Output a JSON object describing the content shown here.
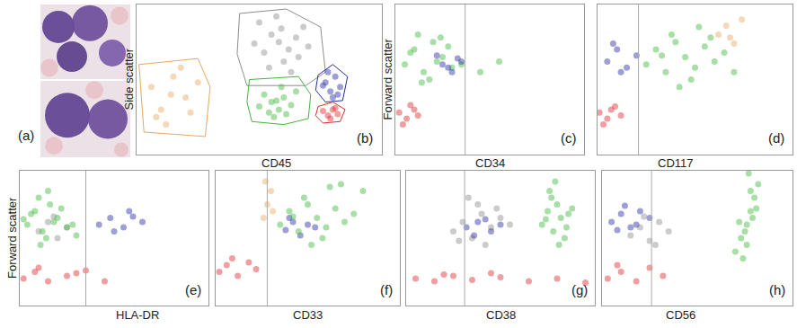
{
  "images": {
    "label": "(a)"
  },
  "chart_data": [
    {
      "type": "scatter",
      "panel_label": "(b)",
      "x_label": "CD45",
      "y_label": "Side scatter",
      "xlim": [
        0,
        100
      ],
      "ylim": [
        0,
        100
      ],
      "xticks": [],
      "yticks": [],
      "tick_labels": false,
      "series": [
        {
          "color": "#8c8c8c",
          "x": [
            50,
            55,
            58,
            62,
            65,
            60,
            52,
            68,
            57,
            63,
            48,
            70,
            59,
            54,
            66
          ],
          "y": [
            88,
            80,
            75,
            70,
            78,
            62,
            68,
            85,
            92,
            55,
            74,
            72,
            84,
            58,
            65
          ],
          "gate": [
            [
              42,
              94
            ],
            [
              61,
              97
            ],
            [
              75,
              85
            ],
            [
              77,
              55
            ],
            [
              69,
              46
            ],
            [
              45,
              46
            ],
            [
              41,
              67
            ]
          ]
        },
        {
          "color": "#3cb83c",
          "x": [
            52,
            55,
            58,
            60,
            63,
            56,
            50,
            65,
            59,
            54,
            61,
            57
          ],
          "y": [
            40,
            35,
            30,
            38,
            33,
            25,
            32,
            42,
            45,
            28,
            27,
            36
          ],
          "gate": [
            [
              46,
              50
            ],
            [
              66,
              52
            ],
            [
              71,
              40
            ],
            [
              70,
              24
            ],
            [
              60,
              20
            ],
            [
              47,
              22
            ],
            [
              45,
              35
            ]
          ]
        },
        {
          "color": "#2a2aa8",
          "x": [
            77,
            79,
            81,
            83,
            80,
            78,
            82,
            76
          ],
          "y": [
            48,
            42,
            52,
            45,
            38,
            55,
            40,
            46
          ],
          "gate": [
            [
              74,
              53
            ],
            [
              80,
              60
            ],
            [
              86,
              52
            ],
            [
              84,
              36
            ],
            [
              77,
              35
            ],
            [
              73,
              43
            ]
          ]
        },
        {
          "color": "#e0282c",
          "x": [
            76,
            78,
            80,
            82,
            79,
            81
          ],
          "y": [
            29,
            26,
            30,
            27,
            24,
            31
          ],
          "gate": [
            [
              74,
              32
            ],
            [
              80,
              35
            ],
            [
              85,
              30
            ],
            [
              83,
              22
            ],
            [
              76,
              21
            ],
            [
              73,
              26
            ]
          ]
        },
        {
          "color": "#e8a860",
          "x": [
            6,
            10,
            15,
            20,
            12,
            25,
            8,
            18,
            22,
            14
          ],
          "y": [
            45,
            30,
            52,
            38,
            20,
            48,
            25,
            58,
            28,
            40
          ],
          "gate": [
            [
              1,
              60
            ],
            [
              25,
              64
            ],
            [
              30,
              45
            ],
            [
              28,
              12
            ],
            [
              3,
              15
            ]
          ]
        }
      ]
    },
    {
      "type": "scatter",
      "panel_label": "(c)",
      "x_label": "CD34",
      "y_label": "Forward scatter",
      "xlim": [
        0,
        100
      ],
      "ylim": [
        0,
        100
      ],
      "xticks": [],
      "yticks": [],
      "tick_labels": false,
      "threshold": 37,
      "series": [
        {
          "color": "#3cb83c",
          "x": [
            5,
            10,
            15,
            20,
            25,
            30,
            12,
            18,
            8,
            22,
            28,
            35,
            45,
            55,
            14,
            24
          ],
          "y": [
            60,
            70,
            55,
            75,
            65,
            58,
            80,
            50,
            68,
            62,
            72,
            60,
            55,
            62,
            48,
            78
          ]
        },
        {
          "color": "#2a2aa8",
          "x": [
            25,
            30,
            33,
            28,
            35,
            22
          ],
          "y": [
            60,
            55,
            64,
            58,
            62,
            66
          ]
        },
        {
          "color": "#e0282c",
          "x": [
            2,
            6,
            10,
            4,
            8,
            12
          ],
          "y": [
            28,
            24,
            30,
            20,
            33,
            26
          ]
        }
      ]
    },
    {
      "type": "scatter",
      "panel_label": "(d)",
      "x_label": "CD117",
      "xlim": [
        0,
        100
      ],
      "ylim": [
        0,
        100
      ],
      "xticks": [],
      "yticks": [],
      "tick_labels": false,
      "threshold": 21,
      "series": [
        {
          "color": "#2a2aa8",
          "x": [
            5,
            10,
            15,
            20,
            8,
            12
          ],
          "y": [
            62,
            70,
            58,
            66,
            74,
            55
          ]
        },
        {
          "color": "#3cb83c",
          "x": [
            25,
            30,
            35,
            40,
            45,
            50,
            55,
            60,
            65,
            70,
            38,
            48,
            58,
            42,
            52,
            33
          ],
          "y": [
            60,
            70,
            55,
            75,
            65,
            58,
            72,
            62,
            68,
            55,
            80,
            50,
            78,
            45,
            85,
            66
          ]
        },
        {
          "color": "#e8a860",
          "x": [
            62,
            66,
            70,
            74,
            68
          ],
          "y": [
            80,
            86,
            74,
            90,
            78
          ]
        },
        {
          "color": "#e0282c",
          "x": [
            1,
            5,
            9,
            3,
            7,
            12
          ],
          "y": [
            28,
            24,
            32,
            20,
            30,
            26
          ]
        }
      ]
    },
    {
      "type": "scatter",
      "panel_label": "(e)",
      "x_label": "HLA-DR",
      "y_label": "Forward scatter",
      "xlim": [
        0,
        100
      ],
      "ylim": [
        0,
        100
      ],
      "xticks": [],
      "yticks": [],
      "tick_labels": false,
      "threshold": 35,
      "series": [
        {
          "color": "#8c8c8c",
          "x": [
            10,
            15,
            20,
            25,
            18
          ],
          "y": [
            55,
            62,
            50,
            58,
            66
          ]
        },
        {
          "color": "#3cb83c",
          "x": [
            4,
            8,
            12,
            16,
            20,
            25,
            10,
            14,
            6,
            18,
            22,
            28,
            30,
            2,
            15,
            11
          ],
          "y": [
            60,
            70,
            55,
            75,
            65,
            58,
            80,
            50,
            68,
            62,
            72,
            60,
            52,
            64,
            85,
            45
          ]
        },
        {
          "color": "#2a2aa8",
          "x": [
            42,
            48,
            55,
            60,
            65,
            50,
            58
          ],
          "y": [
            60,
            65,
            58,
            66,
            62,
            55,
            70
          ]
        },
        {
          "color": "#e0282c",
          "x": [
            2,
            8,
            15,
            25,
            35,
            45,
            10,
            30
          ],
          "y": [
            20,
            25,
            18,
            22,
            26,
            18,
            28,
            24
          ]
        }
      ]
    },
    {
      "type": "scatter",
      "panel_label": "(f)",
      "x_label": "CD33",
      "xlim": [
        0,
        100
      ],
      "ylim": [
        0,
        100
      ],
      "xticks": [],
      "yticks": [],
      "tick_labels": false,
      "threshold": 28,
      "series": [
        {
          "color": "#e8a860",
          "x": [
            26,
            28,
            30,
            27,
            31
          ],
          "y": [
            65,
            75,
            85,
            92,
            70
          ]
        },
        {
          "color": "#2a2aa8",
          "x": [
            38,
            42,
            46,
            50,
            40,
            54
          ],
          "y": [
            56,
            62,
            52,
            60,
            65,
            58
          ]
        },
        {
          "color": "#3cb83c",
          "x": [
            35,
            40,
            45,
            50,
            55,
            60,
            65,
            70,
            75,
            80,
            48,
            58,
            68,
            52,
            62,
            42
          ],
          "y": [
            60,
            70,
            55,
            75,
            65,
            58,
            72,
            62,
            68,
            85,
            80,
            50,
            90,
            45,
            88,
            66
          ]
        },
        {
          "color": "#e0282c",
          "x": [
            2,
            6,
            12,
            18,
            22,
            9
          ],
          "y": [
            25,
            30,
            22,
            32,
            27,
            35
          ]
        }
      ]
    },
    {
      "type": "scatter",
      "panel_label": "(g)",
      "x_label": "CD38",
      "xlim": [
        0,
        100
      ],
      "ylim": [
        0,
        100
      ],
      "xticks": [],
      "yticks": [],
      "tick_labels": false,
      "threshold": 31,
      "series": [
        {
          "color": "#8c8c8c",
          "x": [
            25,
            30,
            35,
            40,
            45,
            50,
            55,
            38,
            42,
            33,
            48,
            28
          ],
          "y": [
            55,
            62,
            50,
            68,
            58,
            65,
            60,
            75,
            45,
            80,
            72,
            48
          ]
        },
        {
          "color": "#2a2aa8",
          "x": [
            32,
            38,
            45,
            50,
            42,
            36
          ],
          "y": [
            58,
            62,
            55,
            60,
            64,
            52
          ]
        },
        {
          "color": "#3cb83c",
          "x": [
            72,
            75,
            78,
            80,
            82,
            85,
            88,
            76,
            84,
            79,
            81,
            74,
            86,
            77
          ],
          "y": [
            60,
            70,
            55,
            75,
            65,
            58,
            72,
            85,
            50,
            92,
            45,
            64,
            68,
            80
          ]
        },
        {
          "color": "#e0282c",
          "x": [
            5,
            15,
            25,
            35,
            50,
            65,
            80,
            95,
            45,
            20
          ],
          "y": [
            20,
            18,
            22,
            19,
            21,
            18,
            20,
            17,
            24,
            23
          ]
        }
      ]
    },
    {
      "type": "scatter",
      "panel_label": "(h)",
      "x_label": "CD56",
      "xlim": [
        0,
        100
      ],
      "ylim": [
        0,
        100
      ],
      "xticks": [],
      "yticks": [],
      "tick_labels": false,
      "threshold": 26,
      "series": [
        {
          "color": "#8c8c8c",
          "x": [
            15,
            20,
            25,
            30,
            35,
            22,
            28
          ],
          "y": [
            52,
            58,
            48,
            62,
            55,
            66,
            45
          ]
        },
        {
          "color": "#2a2aa8",
          "x": [
            5,
            10,
            15,
            20,
            25,
            12,
            8,
            18
          ],
          "y": [
            62,
            68,
            58,
            70,
            65,
            74,
            56,
            60
          ]
        },
        {
          "color": "#3cb83c",
          "x": [
            70,
            73,
            76,
            78,
            80,
            82,
            75,
            79,
            77,
            72,
            81,
            74,
            78,
            76
          ],
          "y": [
            40,
            50,
            60,
            70,
            80,
            90,
            55,
            65,
            98,
            62,
            72,
            35,
            85,
            45
          ]
        },
        {
          "color": "#e0282c",
          "x": [
            3,
            10,
            18,
            25,
            32,
            8
          ],
          "y": [
            20,
            25,
            18,
            28,
            22,
            30
          ]
        }
      ]
    }
  ]
}
